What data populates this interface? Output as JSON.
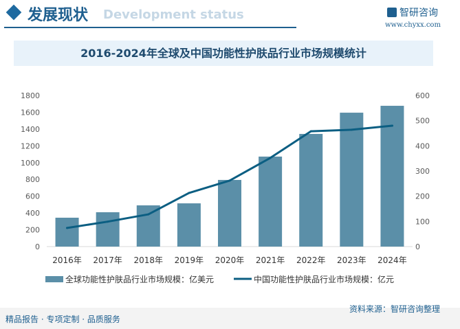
{
  "header": {
    "title": "发展现状",
    "subtitle": "Development status",
    "logo_text": "智研咨询",
    "url": "www.chyxx.com"
  },
  "footer": {
    "left": "精品报告 · 专项定制 · 品质服务",
    "source": "资料来源：智研咨询整理"
  },
  "colors": {
    "bar": "#5b8fa8",
    "line": "#0b5e82",
    "accent": "#1e5f8f"
  },
  "chart_data": {
    "type": "bar+line",
    "title": "2016-2024年全球及中国功能性护肤品行业市场规模统计",
    "categories": [
      "2016年",
      "2017年",
      "2018年",
      "2019年",
      "2020年",
      "2021年",
      "2022年",
      "2023年",
      "2024年"
    ],
    "series": [
      {
        "name": "全球功能性护肤品行业市场规模：亿美元",
        "type": "bar",
        "axis": "left",
        "values": [
          344,
          409,
          491,
          515,
          794,
          1072,
          1342,
          1595,
          1677
        ]
      },
      {
        "name": "中国功能性护肤品行业市场规模：亿元",
        "type": "line",
        "axis": "right",
        "values": [
          74,
          99,
          128,
          213,
          262,
          352,
          458,
          464,
          480
        ]
      }
    ],
    "y_left": {
      "range": [
        0,
        1800
      ],
      "ticks": [
        0,
        200,
        400,
        600,
        800,
        1000,
        1200,
        1400,
        1600,
        1800
      ]
    },
    "y_right": {
      "range": [
        0,
        600
      ],
      "ticks": [
        0,
        100,
        200,
        300,
        400,
        500,
        600
      ]
    },
    "grid": false,
    "legend": "bottom"
  }
}
